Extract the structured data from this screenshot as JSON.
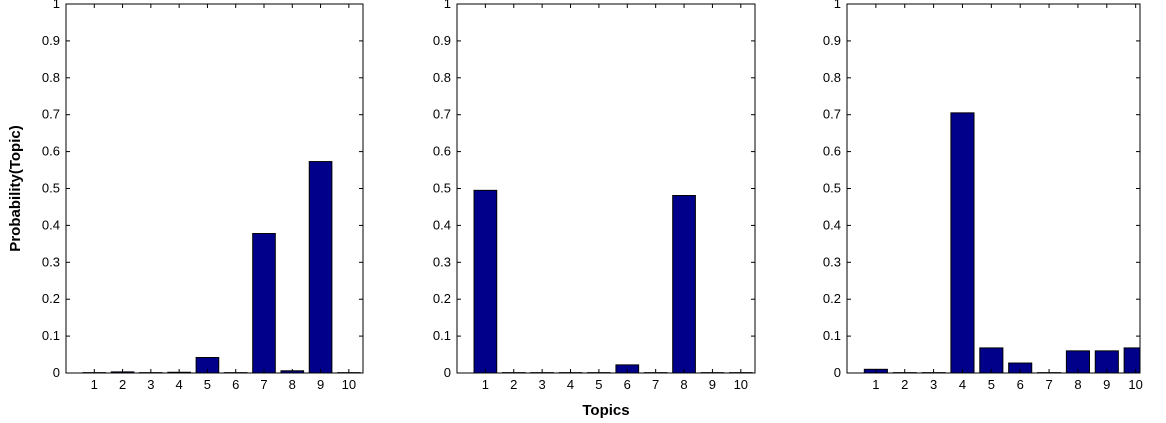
{
  "chart_data": [
    {
      "type": "bar",
      "categories": [
        "1",
        "2",
        "3",
        "4",
        "5",
        "6",
        "7",
        "8",
        "9",
        "10"
      ],
      "values": [
        0.001,
        0.003,
        0.001,
        0.002,
        0.042,
        0.001,
        0.378,
        0.006,
        0.573,
        0.001
      ],
      "xlabel": "",
      "ylabel": "Probability(Topic)",
      "ylim": [
        0,
        1
      ],
      "yticks": [
        "0",
        "0.1",
        "0.2",
        "0.3",
        "0.4",
        "0.5",
        "0.6",
        "0.7",
        "0.8",
        "0.9",
        "1"
      ],
      "xlim": [
        0,
        10.5
      ],
      "bar_color": "#00008b",
      "grid": false
    },
    {
      "type": "bar",
      "categories": [
        "1",
        "2",
        "3",
        "4",
        "5",
        "6",
        "7",
        "8",
        "9",
        "10"
      ],
      "values": [
        0.495,
        0.001,
        0.001,
        0.001,
        0.001,
        0.022,
        0.001,
        0.481,
        0.001,
        0.001
      ],
      "xlabel": "Topics",
      "ylabel": "",
      "ylim": [
        0,
        1
      ],
      "yticks": [
        "0",
        "0.1",
        "0.2",
        "0.3",
        "0.4",
        "0.5",
        "0.6",
        "0.7",
        "0.8",
        "0.9",
        "1"
      ],
      "xlim": [
        0,
        10.5
      ],
      "bar_color": "#00008b",
      "grid": false
    },
    {
      "type": "bar",
      "categories": [
        "1",
        "2",
        "3",
        "4",
        "5",
        "6",
        "7",
        "8",
        "9",
        "10"
      ],
      "values": [
        0.01,
        0.001,
        0.001,
        0.705,
        0.068,
        0.027,
        0.001,
        0.06,
        0.06,
        0.068
      ],
      "xlabel": "",
      "ylabel": "",
      "ylim": [
        0,
        1
      ],
      "yticks": [
        "0",
        "0.1",
        "0.2",
        "0.3",
        "0.4",
        "0.5",
        "0.6",
        "0.7",
        "0.8",
        "0.9",
        "1"
      ],
      "xlim": [
        0,
        10.15
      ],
      "bar_color": "#00008b",
      "grid": false
    }
  ]
}
